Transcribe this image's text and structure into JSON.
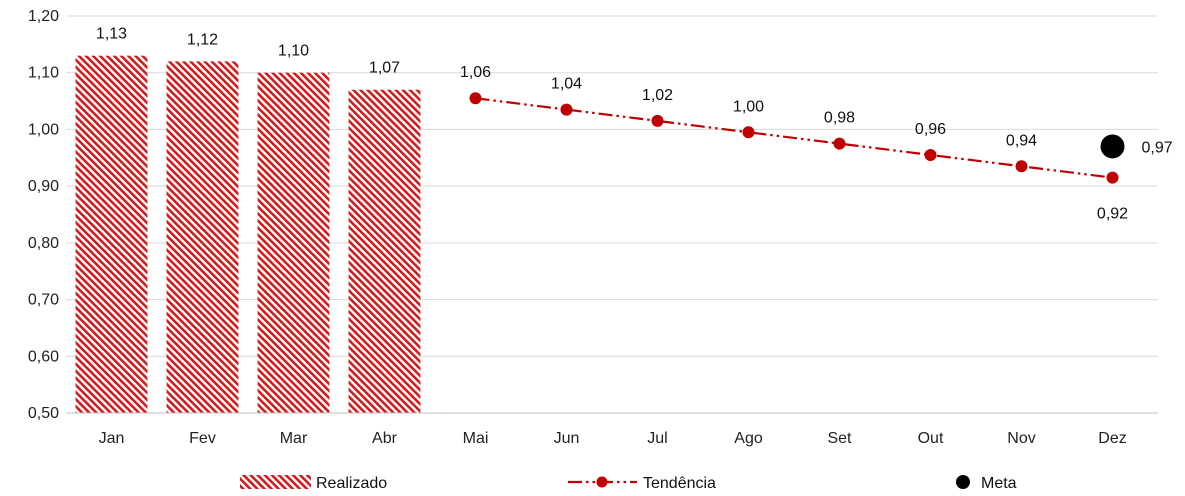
{
  "chart_data": {
    "type": "bar",
    "title": "",
    "xlabel": "",
    "ylabel": "",
    "categories": [
      "Jan",
      "Fev",
      "Mar",
      "Abr",
      "Mai",
      "Jun",
      "Jul",
      "Ago",
      "Set",
      "Out",
      "Nov",
      "Dez"
    ],
    "ylim": [
      0.5,
      1.2
    ],
    "yticks": [
      "0,50",
      "0,60",
      "0,70",
      "0,80",
      "0,90",
      "1,00",
      "1,10",
      "1,20"
    ],
    "grid": true,
    "legend_position": "bottom",
    "series": [
      {
        "name": "Realizado",
        "type": "bar",
        "pattern": "hatched",
        "color": "#d01c1c",
        "values": [
          1.13,
          1.12,
          1.1,
          1.07,
          null,
          null,
          null,
          null,
          null,
          null,
          null,
          null
        ],
        "labels": [
          "1,13",
          "1,12",
          "1,10",
          "1,07",
          "",
          "",
          "",
          "",
          "",
          "",
          "",
          ""
        ]
      },
      {
        "name": "Tendência",
        "type": "line",
        "line_style": "dash-dot-dot",
        "color": "#c00000",
        "values": [
          null,
          null,
          null,
          null,
          1.055,
          1.035,
          1.015,
          0.995,
          0.975,
          0.955,
          0.935,
          0.915
        ],
        "labels": [
          "",
          "",
          "",
          "",
          "1,06",
          "1,04",
          "1,02",
          "1,00",
          "0,98",
          "0,96",
          "0,94",
          "0,92"
        ]
      },
      {
        "name": "Meta",
        "type": "scatter",
        "color": "#000000",
        "values": [
          null,
          null,
          null,
          null,
          null,
          null,
          null,
          null,
          null,
          null,
          null,
          0.97
        ],
        "labels": [
          "",
          "",
          "",
          "",
          "",
          "",
          "",
          "",
          "",
          "",
          "",
          "0,97"
        ]
      }
    ]
  }
}
